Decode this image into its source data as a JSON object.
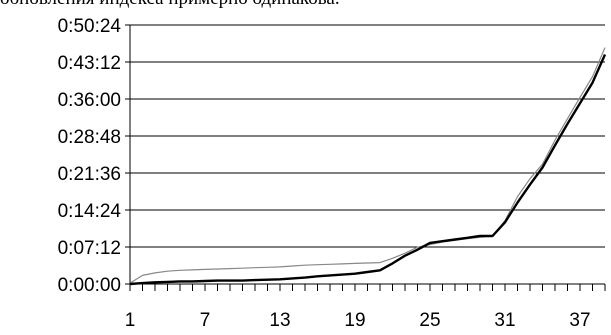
{
  "page": {
    "caption": "обновления индекса примерно одинакова."
  },
  "chart_data": {
    "type": "line",
    "title": "",
    "xlabel": "",
    "ylabel": "",
    "x_tick_labels": [
      "1",
      "7",
      "13",
      "19",
      "25",
      "31",
      "37"
    ],
    "y_tick_labels": [
      "0:00:00",
      "0:07:12",
      "0:14:24",
      "0:21:36",
      "0:28:48",
      "0:36:00",
      "0:43:12",
      "0:50:24"
    ],
    "xlim": [
      1,
      39
    ],
    "ylim_seconds": [
      0,
      3024
    ],
    "y_tick_step_seconds": 432,
    "grid": {
      "horizontal": true,
      "vertical": false
    },
    "legend": "none",
    "series": [
      {
        "color": "#000000",
        "style": "thick",
        "x": [
          1,
          2,
          3,
          4,
          5,
          6,
          7,
          8,
          9,
          10,
          11,
          12,
          13,
          14,
          15,
          16,
          17,
          18,
          19,
          20,
          21,
          22,
          23,
          24,
          25,
          26,
          27,
          28,
          29,
          30,
          31,
          32,
          33,
          34,
          35,
          36,
          37,
          38,
          39
        ],
        "values_seconds": [
          0,
          10,
          20,
          25,
          30,
          30,
          35,
          40,
          40,
          40,
          45,
          50,
          55,
          65,
          75,
          90,
          100,
          110,
          120,
          140,
          160,
          240,
          330,
          400,
          480,
          500,
          520,
          540,
          560,
          560,
          720,
          950,
          1160,
          1360,
          1620,
          1870,
          2110,
          2350,
          2680
        ]
      },
      {
        "color": "#888888",
        "style": "thin",
        "x": [
          1,
          2,
          3,
          4,
          5,
          6,
          7,
          8,
          9,
          10,
          11,
          12,
          13,
          14,
          15,
          16,
          17,
          18,
          19,
          20,
          21,
          22,
          23,
          24,
          25,
          26,
          27,
          28,
          29,
          30,
          31,
          32,
          33,
          34,
          35,
          36,
          37,
          38,
          39
        ],
        "values_seconds": [
          10,
          100,
          130,
          150,
          160,
          165,
          170,
          175,
          180,
          185,
          190,
          195,
          200,
          210,
          220,
          225,
          230,
          235,
          240,
          245,
          250,
          300,
          360,
          430,
          460,
          490,
          510,
          530,
          545,
          560,
          740,
          1020,
          1230,
          1400,
          1680,
          1930,
          2180,
          2420,
          2760
        ]
      }
    ]
  }
}
